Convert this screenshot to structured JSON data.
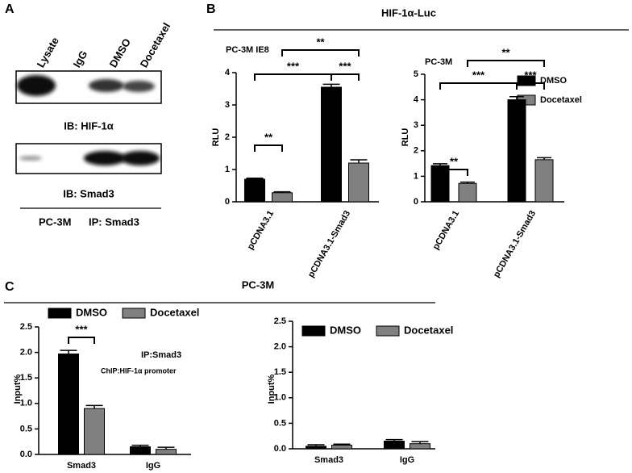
{
  "panels": [
    "A",
    "B",
    "C"
  ],
  "blot": {
    "lanes": [
      "Lysate",
      "IgG",
      "DMSO",
      "Docetaxel"
    ],
    "ib_labels": [
      "IB: HIF-1α",
      "IB: Smad3"
    ],
    "cell_line": "PC-3M",
    "ip": "IP: Smad3"
  },
  "panel_b_title": "HIF-1α-Luc",
  "panel_c_title": "PC-3M",
  "chart_data": [
    {
      "type": "bar",
      "title": "PC-3M IE8",
      "ylabel": "RLU",
      "categories": [
        "pCDNA3.1",
        "pCDNA3.1-Smad3"
      ],
      "series": [
        {
          "name": "DMSO",
          "color": "#000000",
          "values": [
            0.7,
            3.55
          ],
          "errors": [
            0.03,
            0.09
          ]
        },
        {
          "name": "Docetaxel",
          "color": "#808080",
          "values": [
            0.28,
            1.2
          ],
          "errors": [
            0.03,
            0.1
          ]
        }
      ],
      "ylim": [
        0,
        4
      ],
      "yticks": [
        0,
        1,
        2,
        3,
        4
      ],
      "annotations": [
        "**",
        "***",
        "***",
        "**"
      ],
      "legend": "right"
    },
    {
      "type": "bar",
      "title": "PC-3M",
      "ylabel": "RLU",
      "categories": [
        "pCDNA3.1",
        "pCDNA3.1-Smad3"
      ],
      "series": [
        {
          "color": "#000000",
          "values": [
            1.42,
            4.0
          ],
          "errors": [
            0.07,
            0.12
          ]
        },
        {
          "color": "#808080",
          "values": [
            0.72,
            1.65
          ],
          "errors": [
            0.05,
            0.08
          ]
        }
      ],
      "ylim": [
        0,
        5
      ],
      "yticks": [
        0,
        1,
        2,
        3,
        4,
        5
      ],
      "annotations": [
        "**",
        "***",
        "***",
        "**"
      ]
    },
    {
      "type": "bar",
      "ylabel": "Input%",
      "categories": [
        "Smad3",
        "IgG"
      ],
      "series": [
        {
          "name": "DMSO",
          "color": "#000000",
          "values": [
            1.97,
            0.15
          ],
          "errors": [
            0.07,
            0.03
          ]
        },
        {
          "name": "Docetaxel",
          "color": "#808080",
          "values": [
            0.9,
            0.1
          ],
          "errors": [
            0.06,
            0.04
          ]
        }
      ],
      "ylim": [
        0,
        2.5
      ],
      "yticks": [
        {
          "value": 0,
          "label": "0.0"
        },
        {
          "value": 0.5,
          "label": "0.5"
        },
        {
          "value": 1,
          "label": "1.0"
        },
        {
          "value": 1.5,
          "label": "1.5"
        },
        {
          "value": 2,
          "label": "2.0"
        },
        {
          "value": 2.5,
          "label": "2.5"
        }
      ],
      "annotations": [
        "***"
      ],
      "notes": [
        "IP:Smad3",
        "ChIP:HIF-1α promoter"
      ],
      "legend": "top"
    },
    {
      "type": "bar",
      "ylabel": "Input%",
      "categories": [
        "Smad3",
        "IgG"
      ],
      "series": [
        {
          "name": "DMSO",
          "color": "#000000",
          "values": [
            0.05,
            0.15
          ],
          "errors": [
            0.03,
            0.03
          ]
        },
        {
          "name": "Docetaxel",
          "color": "#808080",
          "values": [
            0.07,
            0.1
          ],
          "errors": [
            0.02,
            0.04
          ]
        }
      ],
      "ylim": [
        0,
        2.5
      ],
      "yticks": [
        {
          "value": 0,
          "label": "0.0"
        },
        {
          "value": 0.5,
          "label": "0.5"
        },
        {
          "value": 1,
          "label": "1.0"
        },
        {
          "value": 1.5,
          "label": "1.5"
        },
        {
          "value": 2,
          "label": "2.0"
        },
        {
          "value": 2.5,
          "label": "2.5"
        }
      ],
      "legend": "top"
    }
  ]
}
